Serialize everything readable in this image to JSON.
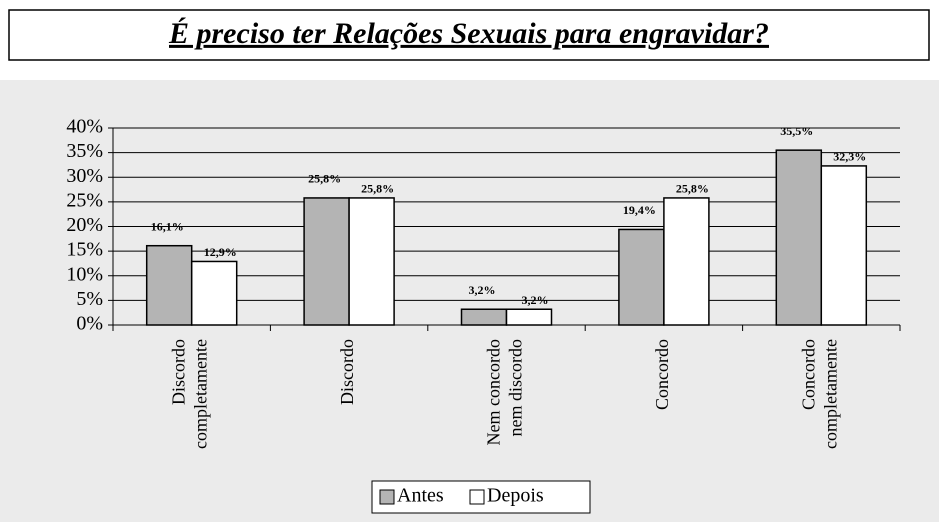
{
  "chart_data": {
    "type": "bar",
    "title": "É preciso ter Relações Sexuais para engravidar?",
    "categories": [
      "Discordo completamente",
      "Discordo",
      "Nem concordo nem discordo",
      "Concordo",
      "Concordo completamente"
    ],
    "series": [
      {
        "name": "Antes",
        "color": "#b4b4b4",
        "values": [
          16.1,
          25.8,
          3.2,
          19.4,
          35.5
        ],
        "value_labels": [
          "16,1%",
          "25,8%",
          "3,2%",
          "19,4%",
          "35,5%"
        ]
      },
      {
        "name": "Depois",
        "color": "#ffffff",
        "values": [
          12.9,
          25.8,
          3.2,
          25.8,
          32.3
        ],
        "value_labels": [
          "12,9%",
          "25,8%",
          "3,2%",
          "25,8%",
          "32,3%"
        ]
      }
    ],
    "ylim": [
      0,
      40
    ],
    "yticks": [
      {
        "value": 0,
        "label": "0%"
      },
      {
        "value": 5,
        "label": "5%"
      },
      {
        "value": 10,
        "label": "10%"
      },
      {
        "value": 15,
        "label": "15%"
      },
      {
        "value": 20,
        "label": "20%"
      },
      {
        "value": 25,
        "label": "25%"
      },
      {
        "value": 30,
        "label": "30%"
      },
      {
        "value": 35,
        "label": "35%"
      },
      {
        "value": 40,
        "label": "40%"
      }
    ],
    "grid": true,
    "legend": "bottom"
  }
}
